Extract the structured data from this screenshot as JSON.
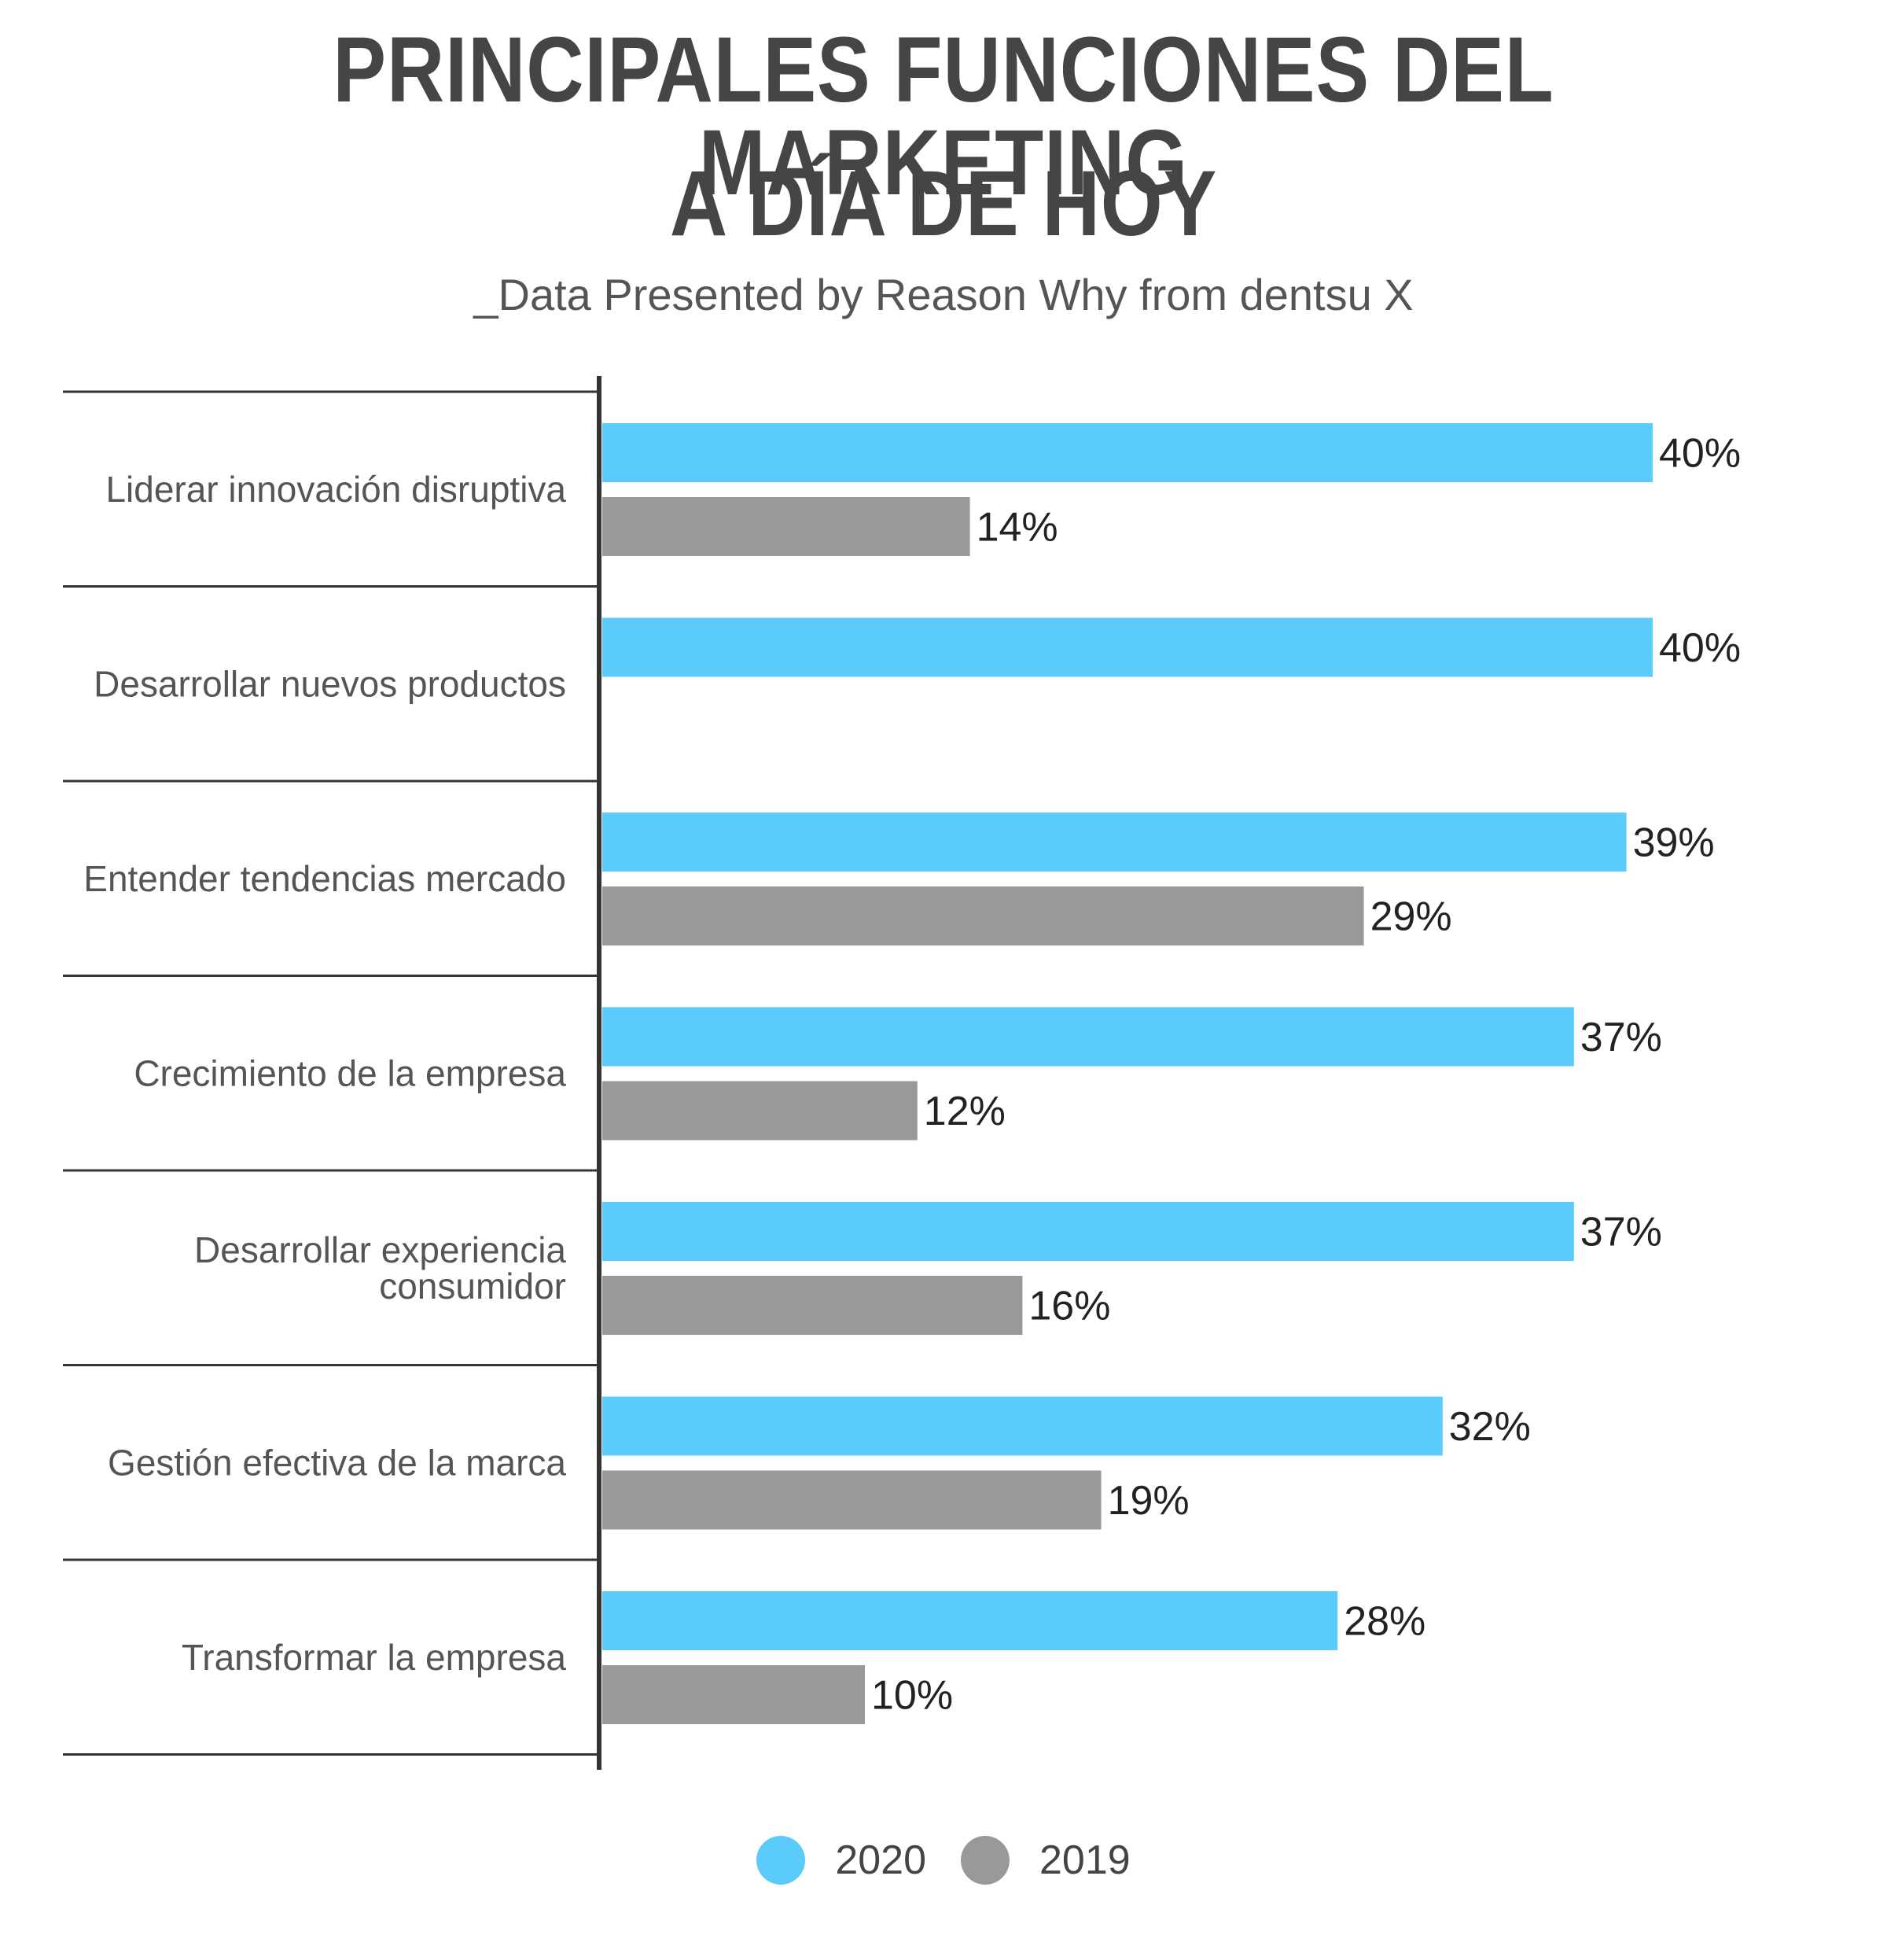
{
  "title_line1": "PRINCIPALES FUNCIONES DEL MARKETING",
  "title_line2": "A DÍA DE HOY",
  "subtitle": "_Data Presented by Reason Why from dentsu X",
  "colors": {
    "series_2020": "#5acbfa",
    "series_2019": "#999999",
    "axis": "#333333",
    "title": "#454545"
  },
  "legend": [
    {
      "label": "2020",
      "color": "#5acbfa"
    },
    {
      "label": "2019",
      "color": "#999999"
    }
  ],
  "chart_data": {
    "type": "bar",
    "orientation": "horizontal",
    "categories": [
      [
        "Liderar innovación disruptiva"
      ],
      [
        "Desarrollar nuevos productos"
      ],
      [
        "Entender tendencias mercado"
      ],
      [
        "Crecimiento de la empresa"
      ],
      [
        "Desarrollar experiencia",
        "consumidor"
      ],
      [
        "Gestión efectiva de la marca"
      ],
      [
        "Transformar la empresa"
      ]
    ],
    "series": [
      {
        "name": "2020",
        "values": [
          40,
          40,
          39,
          37,
          37,
          32,
          28
        ],
        "labels": [
          "40%",
          "40%",
          "39%",
          "37%",
          "37%",
          "32%",
          "28%"
        ]
      },
      {
        "name": "2019",
        "values": [
          14,
          null,
          29,
          12,
          16,
          19,
          10
        ],
        "labels": [
          "14%",
          "",
          "29%",
          "12%",
          "16%",
          "19%",
          "10%"
        ]
      }
    ],
    "unit": "%",
    "xlim": [
      0,
      40
    ],
    "legend_position": "bottom-center",
    "grid": false
  }
}
